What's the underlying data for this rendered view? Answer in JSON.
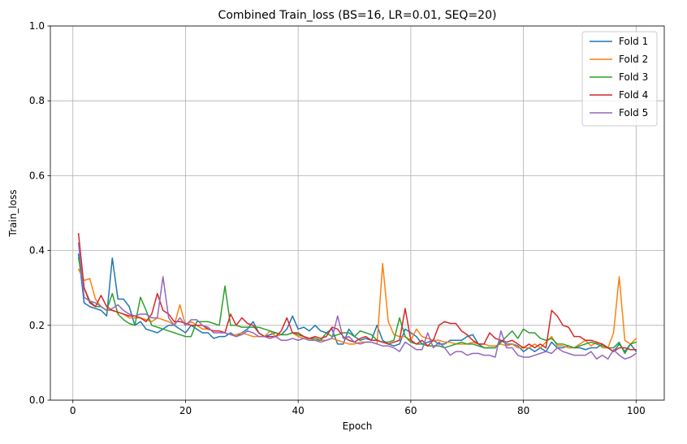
{
  "chart_data": {
    "type": "line",
    "title": "Combined Train_loss (BS=16, LR=0.01, SEQ=20)",
    "xlabel": "Epoch",
    "ylabel": "Train_loss",
    "xlim": [
      -4,
      105
    ],
    "ylim": [
      0.0,
      1.0
    ],
    "xticks": [
      0,
      20,
      40,
      60,
      80,
      100
    ],
    "yticks": [
      0.0,
      0.2,
      0.4,
      0.6,
      0.8,
      1.0
    ],
    "xtick_labels": [
      "0",
      "20",
      "40",
      "60",
      "80",
      "100"
    ],
    "ytick_labels": [
      "0.0",
      "0.2",
      "0.4",
      "0.6",
      "0.8",
      "1.0"
    ],
    "grid": true,
    "legend_position": "top-right",
    "x": [
      1,
      2,
      3,
      4,
      5,
      6,
      7,
      8,
      9,
      10,
      11,
      12,
      13,
      14,
      15,
      16,
      17,
      18,
      19,
      20,
      21,
      22,
      23,
      24,
      25,
      26,
      27,
      28,
      29,
      30,
      31,
      32,
      33,
      34,
      35,
      36,
      37,
      38,
      39,
      40,
      41,
      42,
      43,
      44,
      45,
      46,
      47,
      48,
      49,
      50,
      51,
      52,
      53,
      54,
      55,
      56,
      57,
      58,
      59,
      60,
      61,
      62,
      63,
      64,
      65,
      66,
      67,
      68,
      69,
      70,
      71,
      72,
      73,
      74,
      75,
      76,
      77,
      78,
      79,
      80,
      81,
      82,
      83,
      84,
      85,
      86,
      87,
      88,
      89,
      90,
      91,
      92,
      93,
      94,
      95,
      96,
      97,
      98,
      99,
      100
    ],
    "series": [
      {
        "name": "Fold 1",
        "color": "#1f77b4",
        "values": [
          0.39,
          0.26,
          0.25,
          0.245,
          0.24,
          0.225,
          0.38,
          0.27,
          0.27,
          0.25,
          0.2,
          0.21,
          0.19,
          0.185,
          0.18,
          0.19,
          0.2,
          0.2,
          0.19,
          0.18,
          0.2,
          0.19,
          0.18,
          0.18,
          0.165,
          0.17,
          0.17,
          0.18,
          0.17,
          0.18,
          0.19,
          0.21,
          0.18,
          0.17,
          0.175,
          0.18,
          0.175,
          0.19,
          0.225,
          0.19,
          0.195,
          0.185,
          0.2,
          0.185,
          0.18,
          0.19,
          0.15,
          0.15,
          0.19,
          0.17,
          0.16,
          0.165,
          0.16,
          0.2,
          0.16,
          0.15,
          0.145,
          0.15,
          0.19,
          0.18,
          0.17,
          0.15,
          0.155,
          0.16,
          0.15,
          0.15,
          0.16,
          0.16,
          0.16,
          0.17,
          0.175,
          0.15,
          0.14,
          0.14,
          0.14,
          0.16,
          0.15,
          0.15,
          0.145,
          0.13,
          0.14,
          0.13,
          0.14,
          0.13,
          0.155,
          0.14,
          0.14,
          0.145,
          0.14,
          0.14,
          0.135,
          0.14,
          0.14,
          0.15,
          0.14,
          0.13,
          0.15,
          0.13,
          0.15,
          0.13
        ]
      },
      {
        "name": "Fold 2",
        "color": "#ff7f0e",
        "values": [
          0.35,
          0.32,
          0.325,
          0.27,
          0.25,
          0.24,
          0.24,
          0.235,
          0.23,
          0.22,
          0.22,
          0.22,
          0.215,
          0.21,
          0.22,
          0.215,
          0.21,
          0.2,
          0.255,
          0.2,
          0.21,
          0.2,
          0.19,
          0.19,
          0.185,
          0.185,
          0.18,
          0.175,
          0.175,
          0.18,
          0.175,
          0.17,
          0.17,
          0.17,
          0.185,
          0.17,
          0.175,
          0.175,
          0.18,
          0.17,
          0.165,
          0.165,
          0.16,
          0.16,
          0.16,
          0.165,
          0.16,
          0.155,
          0.15,
          0.15,
          0.155,
          0.155,
          0.155,
          0.15,
          0.365,
          0.21,
          0.175,
          0.17,
          0.17,
          0.16,
          0.19,
          0.17,
          0.165,
          0.16,
          0.16,
          0.155,
          0.155,
          0.15,
          0.15,
          0.15,
          0.155,
          0.15,
          0.15,
          0.145,
          0.145,
          0.15,
          0.145,
          0.15,
          0.14,
          0.14,
          0.14,
          0.15,
          0.14,
          0.155,
          0.17,
          0.145,
          0.145,
          0.14,
          0.14,
          0.15,
          0.16,
          0.145,
          0.155,
          0.14,
          0.14,
          0.18,
          0.33,
          0.16,
          0.15,
          0.165
        ]
      },
      {
        "name": "Fold 3",
        "color": "#2ca02c",
        "values": [
          0.38,
          0.3,
          0.265,
          0.25,
          0.25,
          0.24,
          0.285,
          0.23,
          0.215,
          0.205,
          0.2,
          0.275,
          0.24,
          0.2,
          0.195,
          0.19,
          0.185,
          0.18,
          0.175,
          0.17,
          0.17,
          0.21,
          0.21,
          0.21,
          0.205,
          0.2,
          0.305,
          0.2,
          0.2,
          0.195,
          0.195,
          0.195,
          0.195,
          0.19,
          0.185,
          0.18,
          0.175,
          0.175,
          0.18,
          0.175,
          0.17,
          0.165,
          0.165,
          0.16,
          0.18,
          0.17,
          0.175,
          0.18,
          0.18,
          0.17,
          0.185,
          0.18,
          0.175,
          0.16,
          0.155,
          0.155,
          0.16,
          0.22,
          0.17,
          0.155,
          0.15,
          0.15,
          0.145,
          0.145,
          0.145,
          0.14,
          0.145,
          0.15,
          0.155,
          0.15,
          0.15,
          0.145,
          0.14,
          0.14,
          0.14,
          0.155,
          0.17,
          0.185,
          0.165,
          0.19,
          0.18,
          0.18,
          0.165,
          0.16,
          0.165,
          0.15,
          0.15,
          0.145,
          0.14,
          0.145,
          0.15,
          0.155,
          0.15,
          0.145,
          0.14,
          0.14,
          0.155,
          0.125,
          0.15,
          0.155
        ]
      },
      {
        "name": "Fold 4",
        "color": "#d62728",
        "values": [
          0.445,
          0.3,
          0.26,
          0.25,
          0.28,
          0.25,
          0.24,
          0.235,
          0.23,
          0.225,
          0.225,
          0.22,
          0.21,
          0.23,
          0.285,
          0.24,
          0.23,
          0.21,
          0.21,
          0.205,
          0.2,
          0.2,
          0.2,
          0.19,
          0.185,
          0.185,
          0.18,
          0.23,
          0.2,
          0.22,
          0.205,
          0.2,
          0.18,
          0.17,
          0.17,
          0.17,
          0.185,
          0.22,
          0.18,
          0.18,
          0.17,
          0.165,
          0.17,
          0.165,
          0.17,
          0.195,
          0.19,
          0.17,
          0.16,
          0.155,
          0.165,
          0.17,
          0.16,
          0.16,
          0.155,
          0.15,
          0.155,
          0.16,
          0.245,
          0.16,
          0.15,
          0.16,
          0.145,
          0.16,
          0.2,
          0.21,
          0.205,
          0.205,
          0.185,
          0.175,
          0.16,
          0.15,
          0.15,
          0.18,
          0.165,
          0.16,
          0.155,
          0.16,
          0.15,
          0.14,
          0.15,
          0.14,
          0.15,
          0.14,
          0.24,
          0.225,
          0.2,
          0.195,
          0.17,
          0.17,
          0.16,
          0.16,
          0.155,
          0.15,
          0.14,
          0.13,
          0.14,
          0.14,
          0.135,
          0.135
        ]
      },
      {
        "name": "Fold 5",
        "color": "#9467bd",
        "values": [
          0.42,
          0.275,
          0.265,
          0.26,
          0.25,
          0.24,
          0.245,
          0.255,
          0.24,
          0.23,
          0.225,
          0.23,
          0.23,
          0.22,
          0.22,
          0.33,
          0.22,
          0.2,
          0.22,
          0.2,
          0.215,
          0.215,
          0.2,
          0.195,
          0.18,
          0.18,
          0.18,
          0.175,
          0.17,
          0.175,
          0.185,
          0.18,
          0.17,
          0.17,
          0.165,
          0.17,
          0.16,
          0.16,
          0.165,
          0.16,
          0.165,
          0.16,
          0.16,
          0.155,
          0.16,
          0.165,
          0.225,
          0.165,
          0.17,
          0.155,
          0.15,
          0.155,
          0.155,
          0.15,
          0.145,
          0.145,
          0.14,
          0.13,
          0.155,
          0.145,
          0.135,
          0.135,
          0.18,
          0.14,
          0.155,
          0.14,
          0.12,
          0.13,
          0.13,
          0.12,
          0.125,
          0.125,
          0.12,
          0.12,
          0.115,
          0.185,
          0.14,
          0.14,
          0.12,
          0.115,
          0.115,
          0.12,
          0.125,
          0.13,
          0.125,
          0.14,
          0.13,
          0.125,
          0.12,
          0.12,
          0.12,
          0.13,
          0.11,
          0.12,
          0.11,
          0.135,
          0.12,
          0.11,
          0.115,
          0.125
        ]
      }
    ]
  }
}
